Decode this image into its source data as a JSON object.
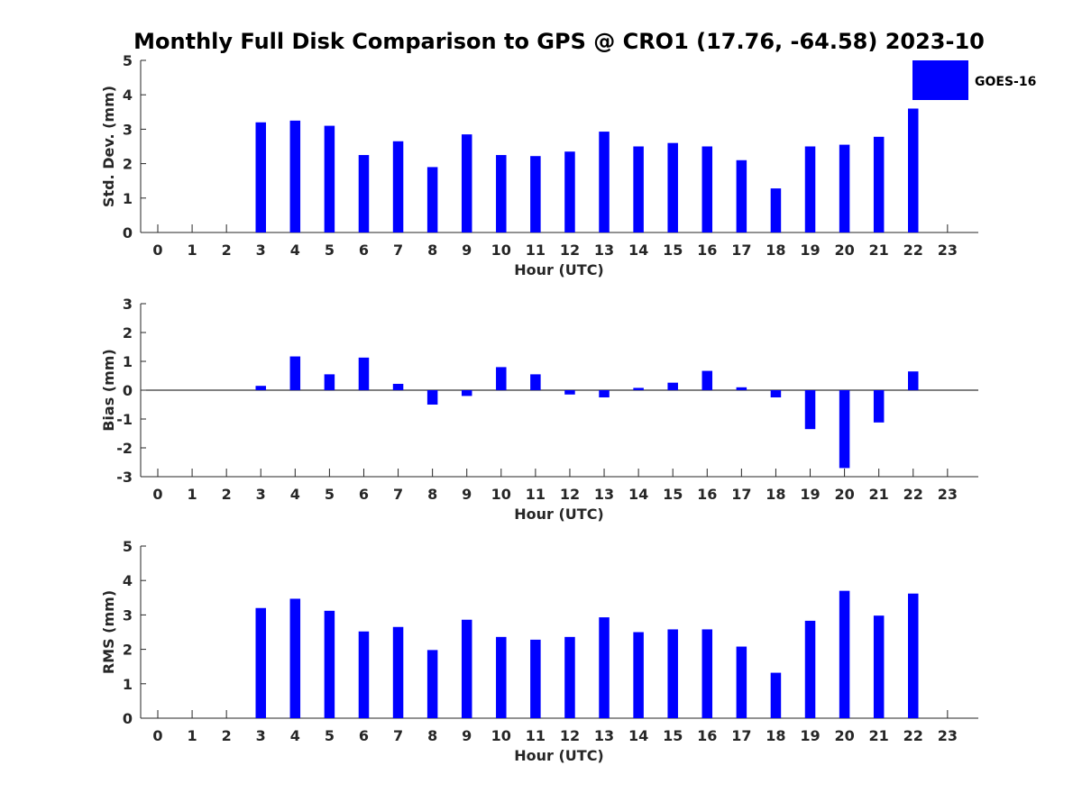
{
  "title": "Monthly Full Disk Comparison to GPS @ CRO1 (17.76, -64.58) 2023-10",
  "legend": {
    "label": "GOES-16",
    "color": "#0000ff",
    "placement": "top-right"
  },
  "chart_data": [
    {
      "type": "bar",
      "xlabel": "Hour (UTC)",
      "ylabel": "Std. Dev. (mm)",
      "xlim": [
        -0.5,
        23.8
      ],
      "ylim": [
        0,
        5
      ],
      "yticks": [
        0,
        1,
        2,
        3,
        4,
        5
      ],
      "categories": [
        "0",
        "1",
        "2",
        "3",
        "4",
        "5",
        "6",
        "7",
        "8",
        "9",
        "10",
        "11",
        "12",
        "13",
        "14",
        "15",
        "16",
        "17",
        "18",
        "19",
        "20",
        "21",
        "22",
        "23"
      ],
      "series": [
        {
          "name": "GOES-16",
          "color": "#0000ff",
          "values": [
            null,
            null,
            null,
            3.2,
            3.25,
            3.1,
            2.25,
            2.65,
            1.9,
            2.85,
            2.25,
            2.22,
            2.35,
            2.93,
            2.5,
            2.6,
            2.5,
            2.1,
            1.28,
            2.5,
            2.55,
            2.78,
            3.6,
            null
          ]
        }
      ]
    },
    {
      "type": "bar",
      "xlabel": "Hour (UTC)",
      "ylabel": "Bias (mm)",
      "xlim": [
        -0.5,
        23.8
      ],
      "ylim": [
        -3,
        3
      ],
      "yticks": [
        -3,
        -2,
        -1,
        0,
        1,
        2,
        3
      ],
      "categories": [
        "0",
        "1",
        "2",
        "3",
        "4",
        "5",
        "6",
        "7",
        "8",
        "9",
        "10",
        "11",
        "12",
        "13",
        "14",
        "15",
        "16",
        "17",
        "18",
        "19",
        "20",
        "21",
        "22",
        "23"
      ],
      "series": [
        {
          "name": "GOES-16",
          "color": "#0000ff",
          "values": [
            null,
            null,
            null,
            0.15,
            1.17,
            0.55,
            1.13,
            0.22,
            -0.5,
            -0.2,
            0.8,
            0.55,
            -0.15,
            -0.25,
            0.08,
            0.26,
            0.67,
            0.1,
            -0.25,
            -1.35,
            -2.7,
            -1.12,
            0.65,
            null
          ]
        }
      ]
    },
    {
      "type": "bar",
      "xlabel": "Hour (UTC)",
      "ylabel": "RMS (mm)",
      "xlim": [
        -0.5,
        23.8
      ],
      "ylim": [
        0,
        5
      ],
      "yticks": [
        0,
        1,
        2,
        3,
        4,
        5
      ],
      "categories": [
        "0",
        "1",
        "2",
        "3",
        "4",
        "5",
        "6",
        "7",
        "8",
        "9",
        "10",
        "11",
        "12",
        "13",
        "14",
        "15",
        "16",
        "17",
        "18",
        "19",
        "20",
        "21",
        "22",
        "23"
      ],
      "series": [
        {
          "name": "GOES-16",
          "color": "#0000ff",
          "values": [
            null,
            null,
            null,
            3.2,
            3.47,
            3.12,
            2.52,
            2.65,
            1.98,
            2.86,
            2.36,
            2.28,
            2.36,
            2.93,
            2.5,
            2.58,
            2.58,
            2.08,
            1.32,
            2.83,
            3.7,
            2.98,
            3.62,
            null
          ]
        }
      ]
    }
  ]
}
